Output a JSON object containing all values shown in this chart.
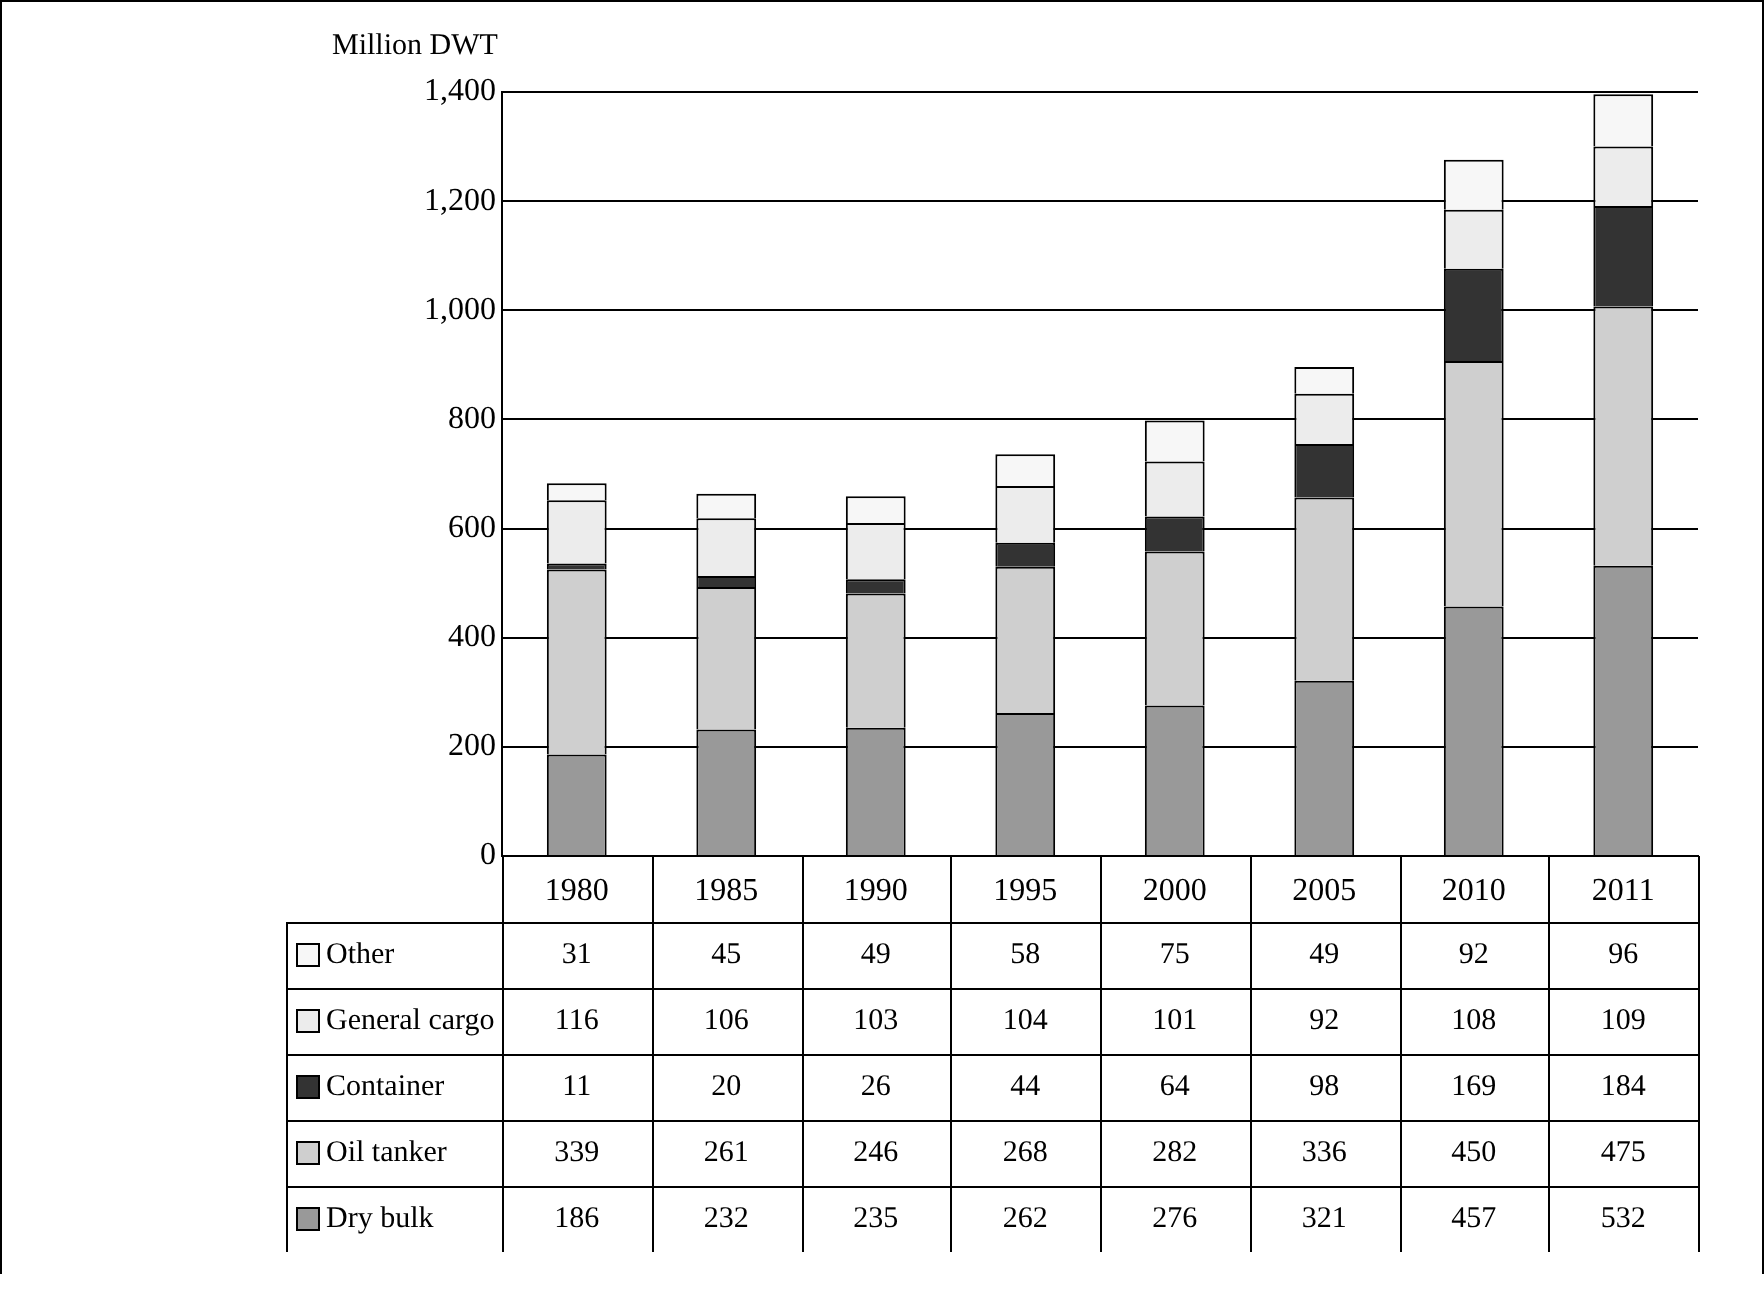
{
  "chart_data": {
    "type": "bar",
    "stacked": true,
    "ylabel": "Million DWT",
    "categories": [
      "1980",
      "1985",
      "1990",
      "1995",
      "2000",
      "2005",
      "2010",
      "2011"
    ],
    "series": [
      {
        "name": "Dry bulk",
        "color": "#999999",
        "values": [
          186,
          232,
          235,
          262,
          276,
          321,
          457,
          532
        ]
      },
      {
        "name": "Oil tanker",
        "color": "#cfcfcf",
        "values": [
          339,
          261,
          246,
          268,
          282,
          336,
          450,
          475
        ]
      },
      {
        "name": "Container",
        "color": "#333333",
        "values": [
          11,
          20,
          26,
          44,
          64,
          98,
          169,
          184
        ]
      },
      {
        "name": "General cargo",
        "color": "#ececec",
        "values": [
          116,
          106,
          103,
          104,
          101,
          92,
          108,
          109
        ]
      },
      {
        "name": "Other",
        "color": "#f7f7f7",
        "values": [
          31,
          45,
          49,
          58,
          75,
          49,
          92,
          96
        ]
      }
    ],
    "ylim": [
      0,
      1400
    ],
    "yticks": [
      0,
      200,
      400,
      600,
      800,
      {
        "value": 1000,
        "label": "1,000"
      },
      {
        "value": 1200,
        "label": "1,200"
      },
      {
        "value": 1400,
        "label": "1,400"
      }
    ],
    "grid": "y",
    "legend": "bottom",
    "data_labels": true
  }
}
